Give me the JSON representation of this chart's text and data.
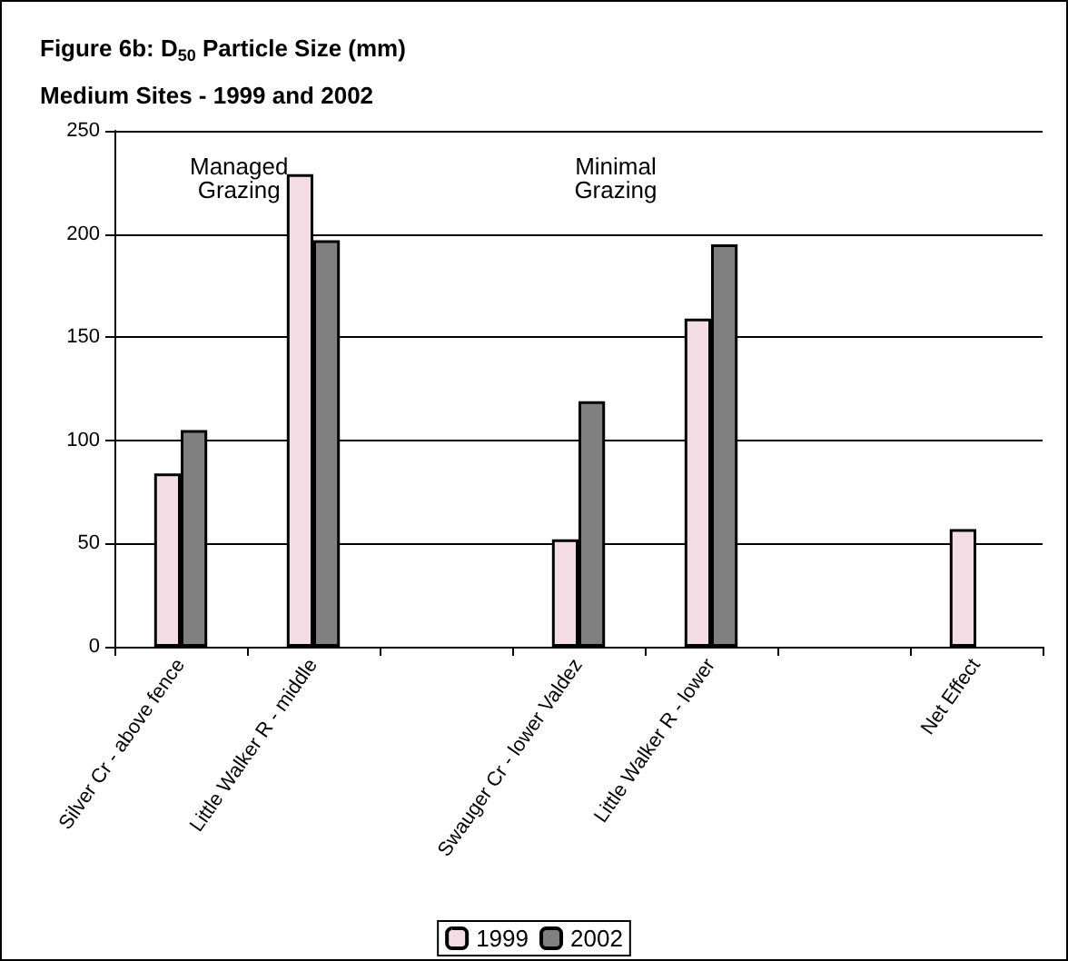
{
  "chart_data": {
    "type": "bar",
    "title": "Figure 6b: D$_{50}$ Particle Size (mm)",
    "subtitle": "Medium Sites - 1999 and 2002",
    "categories": [
      "Silver Cr - above fence",
      "Little Walker R - middle",
      null,
      "Swauger Cr - lower Valdez",
      "Little Walker R - lower",
      null,
      "Net Effect"
    ],
    "series": [
      {
        "name": "1999",
        "color": "#f4dce4",
        "values": [
          84,
          229,
          null,
          52,
          159,
          null,
          57
        ]
      },
      {
        "name": "2002",
        "color": "#808080",
        "values": [
          105,
          197,
          null,
          119,
          195,
          null,
          null
        ]
      }
    ],
    "ylim": [
      0,
      250
    ],
    "yticks": [
      0,
      50,
      100,
      150,
      200,
      250
    ],
    "grid": "y",
    "legend": "bottom",
    "annotations": [
      "Managed\nGrazing",
      "Minimal\nGrazing"
    ]
  }
}
